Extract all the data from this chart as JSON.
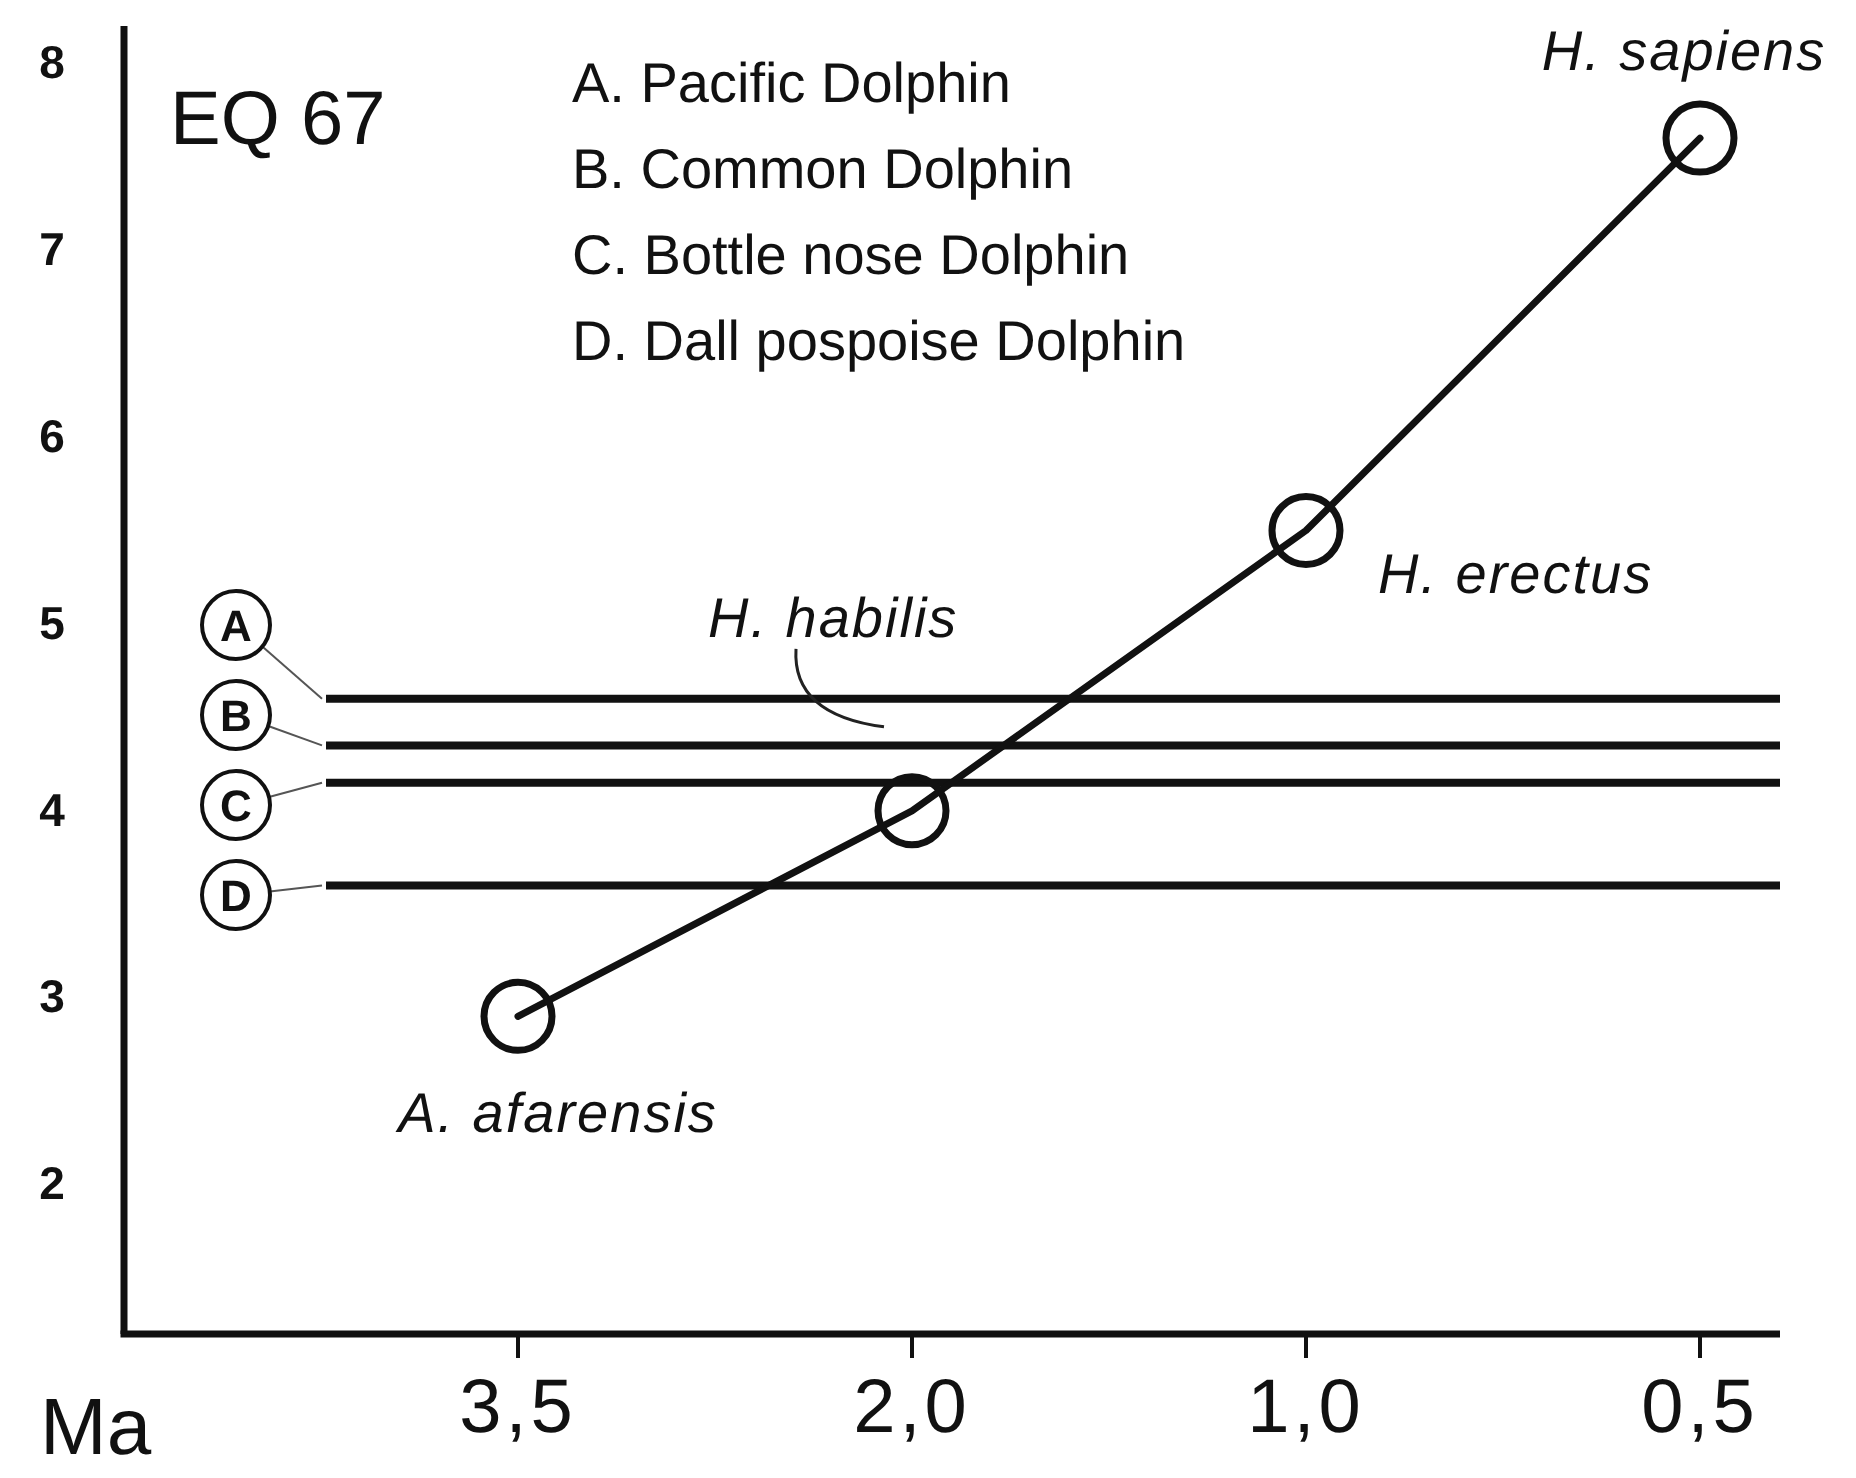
{
  "chart_data": {
    "type": "line",
    "title": "EQ 67",
    "xlabel": "Ma",
    "categories": [
      "3,5",
      "2,0",
      "1,0",
      "0,5"
    ],
    "series": [
      {
        "color": "#111111",
        "values": [
          2.9,
          4.0,
          5.5,
          7.6
        ]
      }
    ],
    "ylim": [
      1.2,
      8.2
    ],
    "yticks": [
      2,
      3,
      4,
      5,
      6,
      7,
      8
    ],
    "marker": "circle",
    "line_style": "solid",
    "ref_lines": [
      {
        "axis": "y",
        "value": 4.6,
        "label": "A"
      },
      {
        "axis": "y",
        "value": 4.35,
        "label": "B"
      },
      {
        "axis": "y",
        "value": 4.15,
        "label": "C"
      },
      {
        "axis": "y",
        "value": 3.6,
        "label": "D"
      }
    ],
    "annotations": [
      "A. Pacific Dolphin",
      "B. Common Dolphin",
      "C. Bottle nose Dolphin",
      "D. Dall pospoise Dolphin",
      {
        "text": "A. afarensis",
        "x": "3,5",
        "y": 2.9
      },
      {
        "text": "H. habilis",
        "x": "2,0",
        "y": 4.0
      },
      {
        "text": "H. erectus",
        "x": "1,0",
        "y": 5.5
      },
      {
        "text": "H. sapiens",
        "x": "0,5",
        "y": 7.6
      }
    ]
  }
}
